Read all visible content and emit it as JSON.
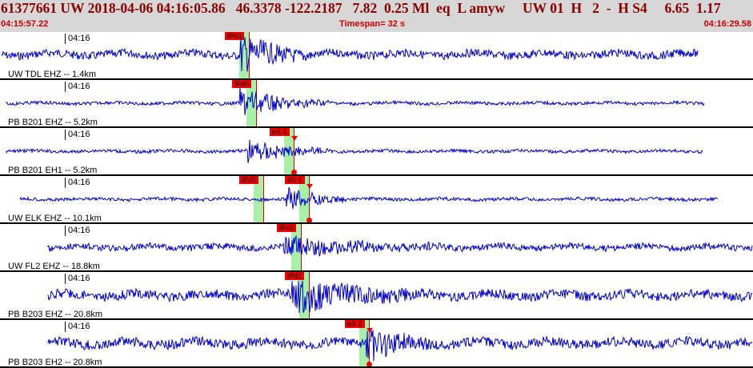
{
  "header": {
    "title": "61377661 UW 2018-04-06 04:16:05.86   46.3378 -122.2187   7.82  0.25 Ml  eq  L amyw     UW 01  H   2  -  H S4     6.65  1.17",
    "start_time": "04:15:57.22",
    "timespan": "Timespan=  32 s",
    "end_time": "04:16:29.58"
  },
  "colors": {
    "trace": "#0000cc",
    "pick": "#ee0000",
    "band": "#a8f0a8",
    "header_bg": "#d7d7d7"
  },
  "traces": [
    {
      "time_label": "04:16",
      "station": "UW TDL EHZ -- 1.4km",
      "picks": [
        {
          "label": "iPc0",
          "t": 0.33
        }
      ]
    },
    {
      "time_label": "04:16",
      "station": "PB B201 EHZ -- 5.2km",
      "picks": [
        {
          "label": "iPd0",
          "t": 0.34
        }
      ]
    },
    {
      "time_label": "04:16",
      "station": "PB B201 EH1 -- 5.2km",
      "picks": [
        {
          "label": "eS 1",
          "t": 0.39
        }
      ]
    },
    {
      "time_label": "04:16",
      "station": "UW ELK EHZ -- 10.1km",
      "picks": [
        {
          "label": "iPc0",
          "t": 0.35
        },
        {
          "label": "eS 1",
          "t": 0.41
        }
      ]
    },
    {
      "time_label": "04:16",
      "station": "UW FL2 EHZ -- 18.8km",
      "picks": [
        {
          "label": "iPc0",
          "t": 0.4
        }
      ]
    },
    {
      "time_label": "04:16",
      "station": "PB B203 EHZ -- 20.8km",
      "picks": [
        {
          "label": "iPd1",
          "t": 0.41
        }
      ]
    },
    {
      "time_label": "04:16",
      "station": "PB B203 EH2 -- 20.8km",
      "picks": [
        {
          "label": "eS 2",
          "t": 0.49
        }
      ]
    }
  ]
}
